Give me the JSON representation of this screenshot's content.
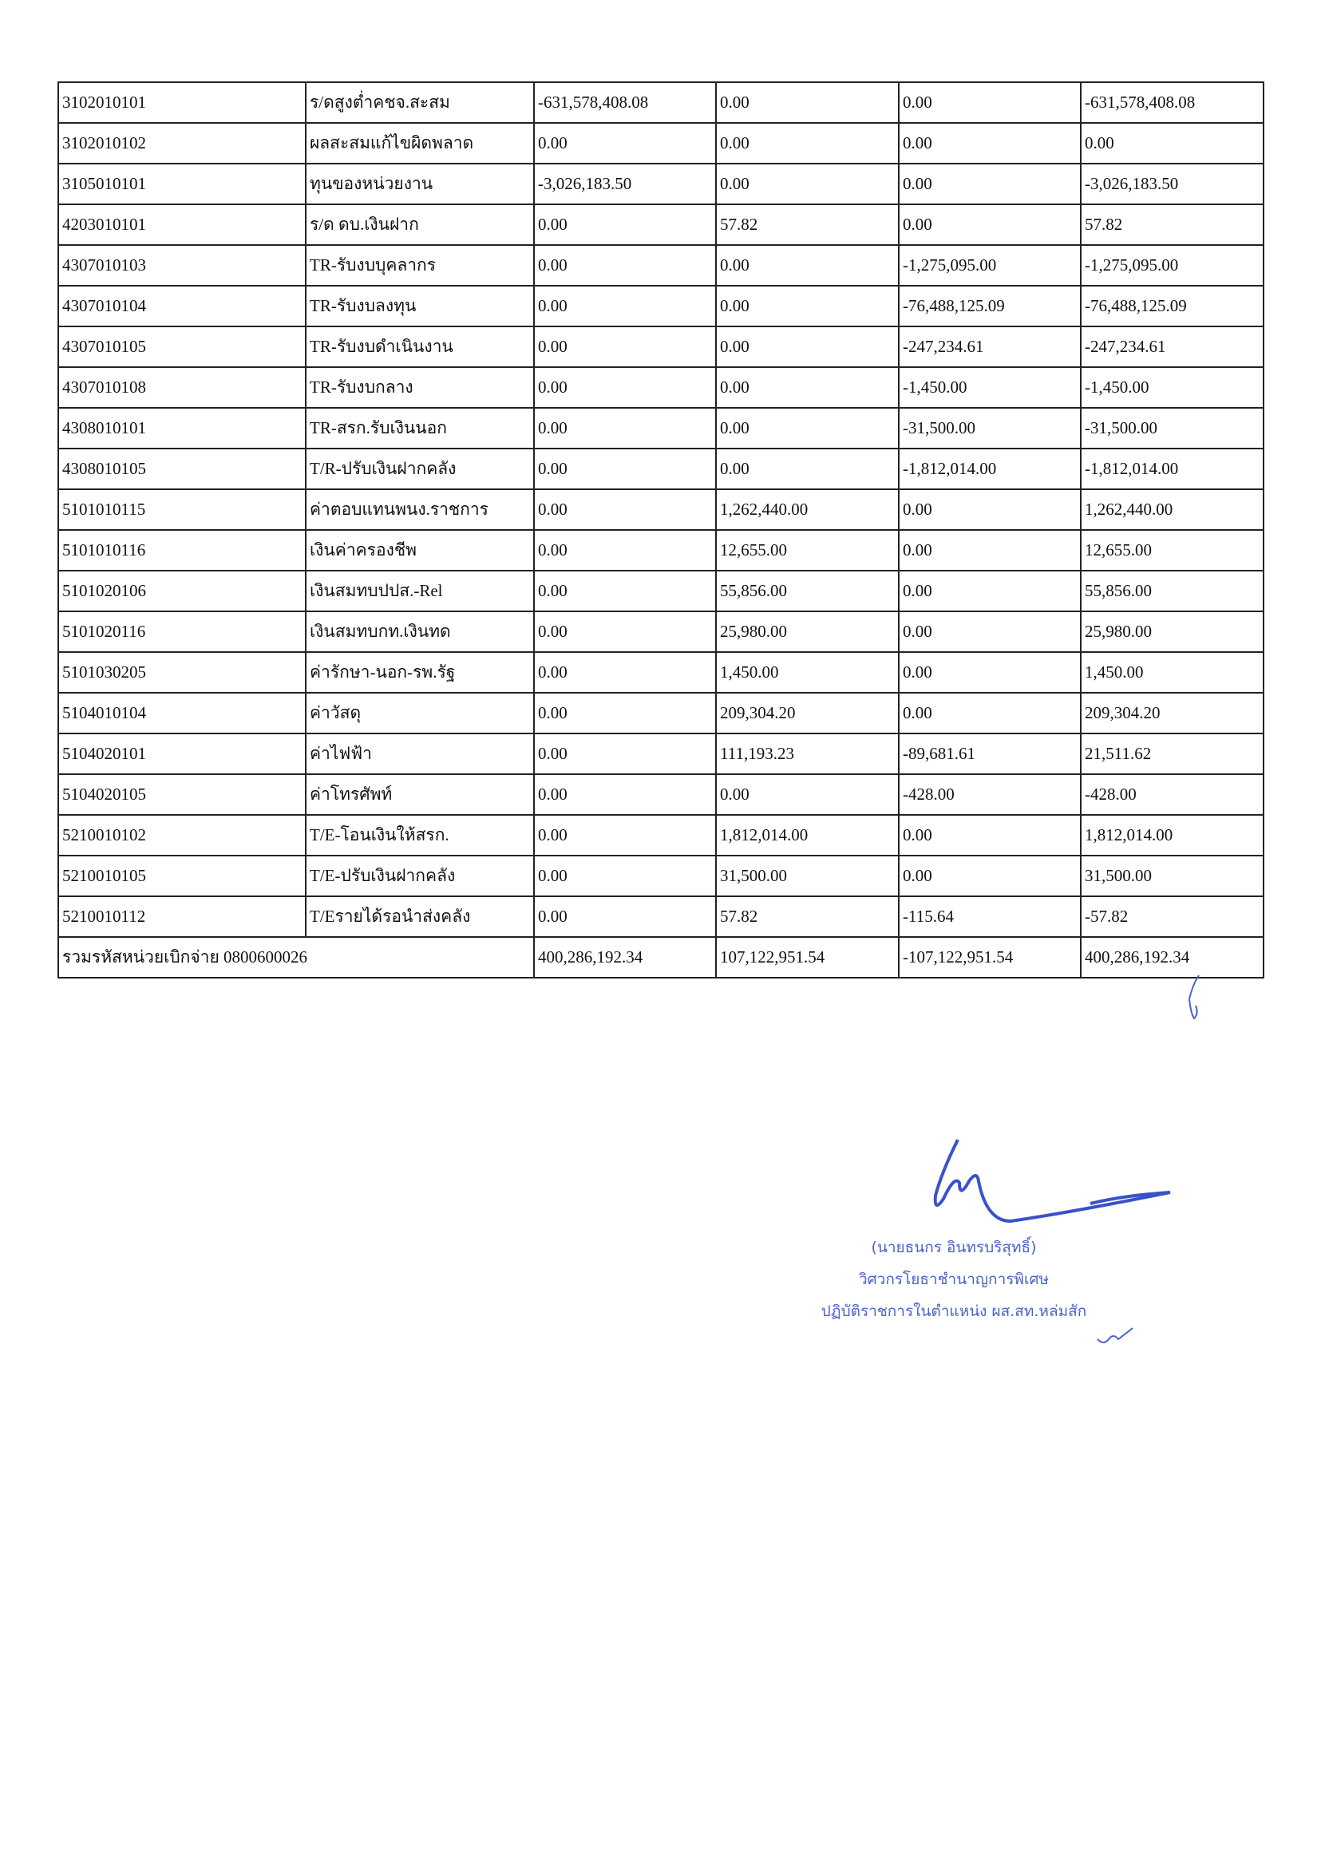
{
  "table": {
    "rows": [
      [
        "3102010101",
        "ร/ดสูงต่ำคชจ.สะสม",
        "-631,578,408.08",
        "0.00",
        "0.00",
        "-631,578,408.08"
      ],
      [
        "3102010102",
        "ผลสะสมแก้ไขผิดพลาด",
        "0.00",
        "0.00",
        "0.00",
        "0.00"
      ],
      [
        "3105010101",
        "ทุนของหน่วยงาน",
        "-3,026,183.50",
        "0.00",
        "0.00",
        "-3,026,183.50"
      ],
      [
        "4203010101",
        "ร/ด ดบ.เงินฝาก",
        "0.00",
        "57.82",
        "0.00",
        "57.82"
      ],
      [
        "4307010103",
        "TR-รับงบบุคลากร",
        "0.00",
        "0.00",
        "-1,275,095.00",
        "-1,275,095.00"
      ],
      [
        "4307010104",
        "TR-รับงบลงทุน",
        "0.00",
        "0.00",
        "-76,488,125.09",
        "-76,488,125.09"
      ],
      [
        "4307010105",
        "TR-รับงบดำเนินงาน",
        "0.00",
        "0.00",
        "-247,234.61",
        "-247,234.61"
      ],
      [
        "4307010108",
        "TR-รับงบกลาง",
        "0.00",
        "0.00",
        "-1,450.00",
        "-1,450.00"
      ],
      [
        "4308010101",
        "TR-สรก.รับเงินนอก",
        "0.00",
        "0.00",
        "-31,500.00",
        "-31,500.00"
      ],
      [
        "4308010105",
        "T/R-ปรับเงินฝากคลัง",
        "0.00",
        "0.00",
        "-1,812,014.00",
        "-1,812,014.00"
      ],
      [
        "5101010115",
        "ค่าตอบแทนพนง.ราชการ",
        "0.00",
        "1,262,440.00",
        "0.00",
        "1,262,440.00"
      ],
      [
        "5101010116",
        "เงินค่าครองชีพ",
        "0.00",
        "12,655.00",
        "0.00",
        "12,655.00"
      ],
      [
        "5101020106",
        "เงินสมทบปปส.-Rel",
        "0.00",
        "55,856.00",
        "0.00",
        "55,856.00"
      ],
      [
        "5101020116",
        "เงินสมทบกท.เงินทด",
        "0.00",
        "25,980.00",
        "0.00",
        "25,980.00"
      ],
      [
        "5101030205",
        "ค่ารักษา-นอก-รพ.รัฐ",
        "0.00",
        "1,450.00",
        "0.00",
        "1,450.00"
      ],
      [
        "5104010104",
        "ค่าวัสดุ",
        "0.00",
        "209,304.20",
        "0.00",
        "209,304.20"
      ],
      [
        "5104020101",
        "ค่าไฟฟ้า",
        "0.00",
        "111,193.23",
        "-89,681.61",
        "21,511.62"
      ],
      [
        "5104020105",
        "ค่าโทรศัพท์",
        "0.00",
        "0.00",
        "-428.00",
        "-428.00"
      ],
      [
        "5210010102",
        "T/E-โอนเงินให้สรก.",
        "0.00",
        "1,812,014.00",
        "0.00",
        "1,812,014.00"
      ],
      [
        "5210010105",
        "T/E-ปรับเงินฝากคลัง",
        "0.00",
        "31,500.00",
        "0.00",
        "31,500.00"
      ],
      [
        "5210010112",
        "T/Eรายได้รอนำส่งคลัง",
        "0.00",
        "57.82",
        "-115.64",
        "-57.82"
      ]
    ],
    "total": [
      "รวมรหัสหน่วยเบิกจ่าย 0800600026",
      "400,286,192.34",
      "107,122,951.54",
      "-107,122,951.54",
      "400,286,192.34"
    ]
  },
  "signature": {
    "name": "(นายธนกร อินทรบริสุทธิ์)",
    "position": "วิศวกรโยธาชำนาญการพิเศษ",
    "acting": "ปฏิบัติราชการในตำแหน่ง ผส.สท.หล่มสัก"
  }
}
